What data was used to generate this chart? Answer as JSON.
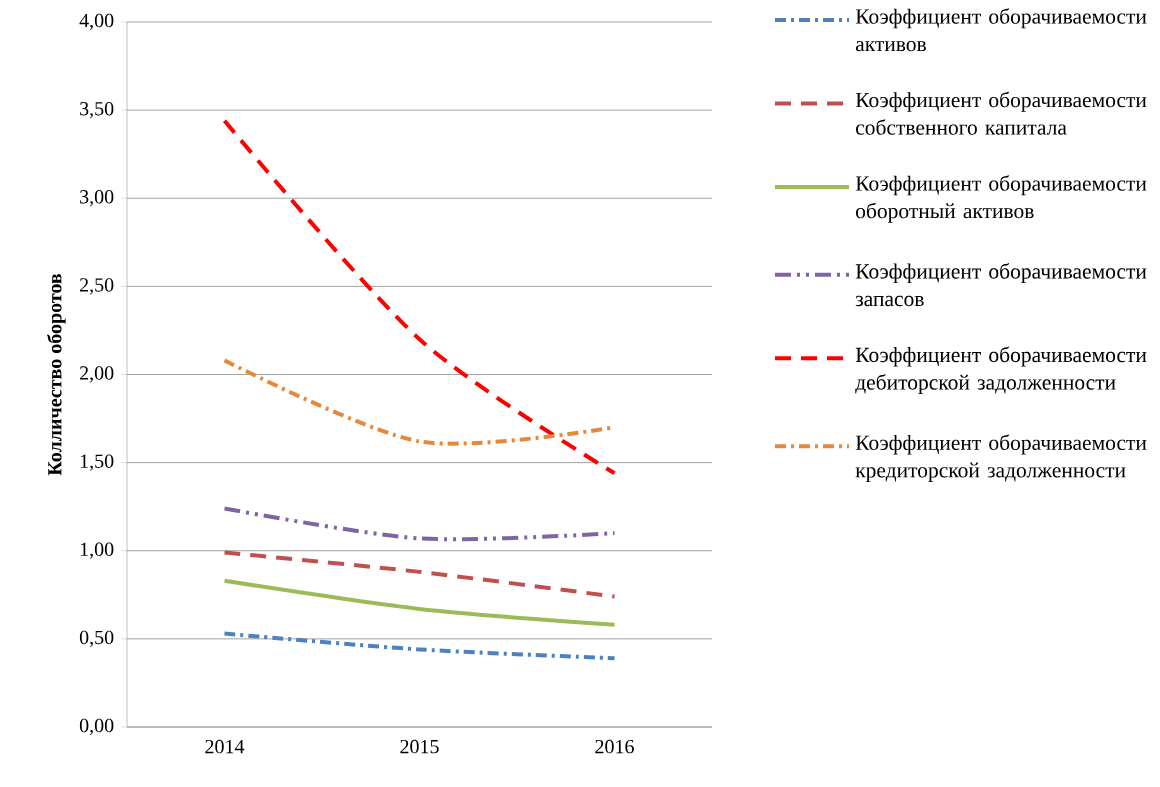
{
  "chart_data": {
    "type": "line",
    "ylabel": "Колличество оборотов",
    "categories": [
      "2014",
      "2015",
      "2016"
    ],
    "series": [
      {
        "name": "Коэффициент оборачиваемости активов",
        "color": "#4f81bd",
        "line_style": "dashdot",
        "values": [
          0.53,
          0.44,
          0.39
        ]
      },
      {
        "name": "Коэффициент оборачиваемости собственного капитала",
        "color": "#c0504d",
        "line_style": "dashed",
        "values": [
          0.99,
          0.88,
          0.74
        ]
      },
      {
        "name": "Коэффициент оборачиваемости оборотный активов",
        "color": "#9bbb59",
        "line_style": "solid",
        "values": [
          0.83,
          0.67,
          0.58
        ]
      },
      {
        "name": "Коэффициент оборачиваемости запасов",
        "color": "#8064a2",
        "line_style": "dashdotdot",
        "values": [
          1.24,
          1.07,
          1.1
        ]
      },
      {
        "name": "Коэффициент оборачиваемости дебиторской задолженности",
        "color": "#ff0000",
        "line_style": "dashed",
        "values": [
          3.44,
          2.2,
          1.44
        ]
      },
      {
        "name": "Коэффициент оборачиваемости кредиторской задолженности",
        "color": "#e6883a",
        "line_style": "dashdot",
        "values": [
          2.08,
          1.62,
          1.7
        ]
      }
    ],
    "ylim": [
      0,
      4
    ],
    "yticks": [
      {
        "value": 0,
        "label": "0,00"
      },
      {
        "value": 0.5,
        "label": "0,50"
      },
      {
        "value": 1,
        "label": "1,00"
      },
      {
        "value": 1.5,
        "label": "1,50"
      },
      {
        "value": 2,
        "label": "2,00"
      },
      {
        "value": 2.5,
        "label": "2,50"
      },
      {
        "value": 3,
        "label": "3,00"
      },
      {
        "value": 3.5,
        "label": "3,50"
      },
      {
        "value": 4,
        "label": "4,00"
      }
    ],
    "grid": "y",
    "legend": "right",
    "marker": "none"
  }
}
